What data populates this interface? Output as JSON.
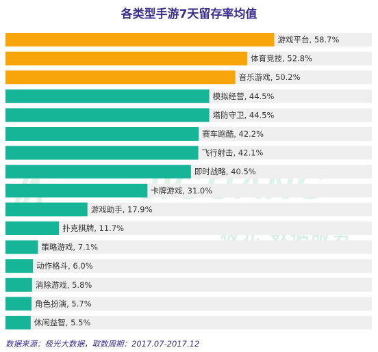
{
  "chart_data": {
    "type": "bar",
    "orientation": "horizontal",
    "title": "各类型手游7天留存率均值",
    "categories": [
      "游戏平台",
      "体育竞技",
      "音乐游戏",
      "模拟经营",
      "塔防守卫",
      "赛车跑酷",
      "飞行射击",
      "即时战略",
      "卡牌游戏",
      "游戏助手",
      "扑克棋牌",
      "策略游戏",
      "动作格斗",
      "消除游戏",
      "角色扮演",
      "休闲益智"
    ],
    "values": [
      58.7,
      52.8,
      50.2,
      44.5,
      44.5,
      42.2,
      42.1,
      40.5,
      31.0,
      17.9,
      11.7,
      7.1,
      6.0,
      5.8,
      5.7,
      5.5
    ],
    "labels": [
      "游戏平台, 58.7%",
      "体育竞技, 52.8%",
      "音乐游戏, 50.2%",
      "模拟经营, 44.5%",
      "塔防守卫, 44.5%",
      "赛车跑酷, 42.2%",
      "飞行射击, 42.1%",
      "即时战略, 40.5%",
      "卡牌游戏, 31.0%",
      "游戏助手, 17.9%",
      "扑克棋牌, 11.7%",
      "策略游戏, 7.1%",
      "动作格斗, 6.0%",
      "消除游戏, 5.8%",
      "角色扮演, 5.7%",
      "休闲益智, 5.5%"
    ],
    "highlight_count": 3,
    "xlim": [
      0,
      80
    ],
    "colors": {
      "highlight": "#f8a50c",
      "normal": "#17b597",
      "track": "#efefef"
    }
  },
  "watermark": {
    "logo": "JIGUANG",
    "subtitle": "极光 数据服务"
  },
  "source": "数据来源：极光大数据，取数周期：2017.07-2017.12"
}
